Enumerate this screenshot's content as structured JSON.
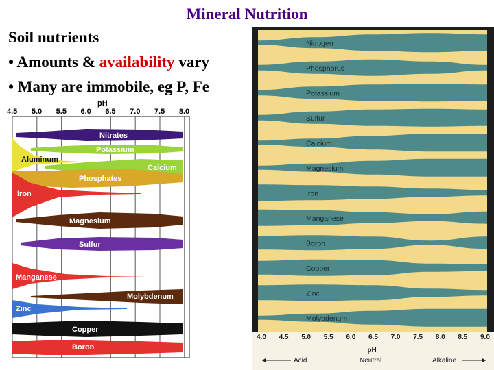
{
  "title": "Mineral Nutrition",
  "heading": "Soil nutrients",
  "bullet1": {
    "prefix": "• Amounts & ",
    "highlight": "availability",
    "suffix": " vary"
  },
  "bullet2": "• Many are immobile, eg P, Fe",
  "colors": {
    "title": "#4b0082",
    "highlight": "#cc0000",
    "left_background": "#ffffff",
    "right_background": "#f3d98a",
    "right_band": "#4f8a8b"
  },
  "left_chart": {
    "axis_title": "pH",
    "ticks": [
      "4.5",
      "5.0",
      "5.5",
      "6.0",
      "6.5",
      "7.0",
      "7.5",
      "8.0"
    ],
    "bands": [
      {
        "label": "Nitrates",
        "color": "#3d1a78"
      },
      {
        "label": "Potassium",
        "color": "#9ad33a"
      },
      {
        "label": "Aluminum",
        "color": "#e7e13a"
      },
      {
        "label": "Calcium",
        "color": "#9ad33a"
      },
      {
        "label": "Phosphates",
        "color": "#d9a828"
      },
      {
        "label": "Iron",
        "color": "#e4332e"
      },
      {
        "label": "Magnesium",
        "color": "#5c2a0c"
      },
      {
        "label": "Sulfur",
        "color": "#6a2fa0"
      },
      {
        "label": "Manganese",
        "color": "#e4332e"
      },
      {
        "label": "Molybdenum",
        "color": "#5c2a0c"
      },
      {
        "label": "Zinc",
        "color": "#3a74d0"
      },
      {
        "label": "Copper",
        "color": "#111111"
      },
      {
        "label": "Boron",
        "color": "#e4332e"
      }
    ]
  },
  "right_chart": {
    "bands": [
      "Nitrogen",
      "Phosphorus",
      "Potassium",
      "Sulfur",
      "Calcium",
      "Magnesium",
      "Iron",
      "Manganese",
      "Boron",
      "Copper",
      "Zinc",
      "Molybdenum"
    ],
    "ticks": [
      "4.0",
      "4.5",
      "5.0",
      "5.5",
      "6.0",
      "6.5",
      "7.0",
      "7.5",
      "8.0",
      "8.5",
      "9.0"
    ],
    "axis_title": "pH",
    "scale_labels": [
      "Acid",
      "Neutral",
      "Alkaline"
    ]
  }
}
